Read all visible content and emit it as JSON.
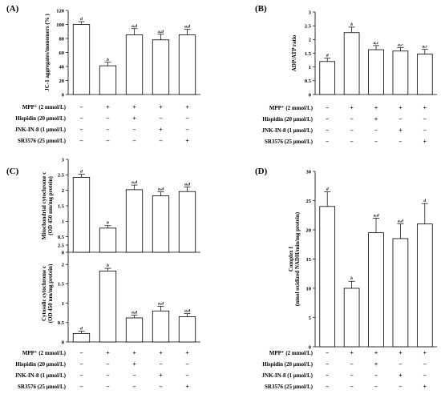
{
  "panels": [
    {
      "label": "(A)"
    },
    {
      "label": "(B)"
    },
    {
      "label": "(C)"
    },
    {
      "label": "(D)"
    }
  ],
  "conditions": {
    "labels": [
      "MPP⁺ (2 mmol/L)",
      "Hispidin (20 μmol/L)",
      "JNK-IN-8 (1 μmol/L)",
      "SR3576 (25 μmol/L)"
    ],
    "signs": [
      [
        "−",
        "+",
        "+",
        "+",
        "+"
      ],
      [
        "−",
        "−",
        "+",
        "−",
        "−"
      ],
      [
        "−",
        "−",
        "−",
        "+",
        "−"
      ],
      [
        "−",
        "−",
        "−",
        "−",
        "+"
      ]
    ]
  },
  "chart_data": [
    {
      "id": "A",
      "type": "bar",
      "ylabel": "JC-1 aggregates/monomers (% )",
      "ylim": [
        0,
        120
      ],
      "yticks": [
        0,
        20,
        40,
        60,
        80,
        100,
        120
      ],
      "values": [
        100,
        41,
        85,
        78,
        85
      ],
      "errors": [
        4,
        5,
        9,
        8,
        8
      ],
      "annotations": [
        "d",
        "b",
        "a,d",
        "a,d",
        "a,d"
      ]
    },
    {
      "id": "B",
      "type": "bar",
      "ylabel": "ADP/ATP ratio",
      "ylim": [
        0,
        3
      ],
      "yticks": [
        0,
        0.5,
        1,
        1.5,
        2,
        2.5,
        3
      ],
      "values": [
        1.2,
        2.25,
        1.63,
        1.58,
        1.47
      ],
      "errors": [
        0.12,
        0.2,
        0.15,
        0.12,
        0.17
      ],
      "annotations": [
        "d",
        "b",
        "a,c",
        "a,c",
        "a,c"
      ]
    },
    {
      "id": "C-top",
      "type": "bar",
      "ylabel": "Mitochondrial cytochrome c (OD 450 nm/mg protein)",
      "ylim": [
        0,
        3
      ],
      "yticks": [
        0,
        0.5,
        1,
        1.5,
        2,
        2.5,
        3
      ],
      "values": [
        2.42,
        0.78,
        2.02,
        1.82,
        1.96
      ],
      "errors": [
        0.1,
        0.08,
        0.15,
        0.13,
        0.15
      ],
      "annotations": [
        "d",
        "b",
        "a,d",
        "a,d",
        "a,d"
      ]
    },
    {
      "id": "C-bottom",
      "type": "bar",
      "ylabel": "Cytosolic cytochrome c (OD 450 nm/mg protein)",
      "ylim": [
        0,
        2.5
      ],
      "yticks": [
        0,
        0.5,
        1,
        1.5,
        2,
        2.5
      ],
      "values": [
        0.22,
        1.83,
        0.62,
        0.8,
        0.65
      ],
      "errors": [
        0.06,
        0.07,
        0.07,
        0.12,
        0.08
      ],
      "annotations": [
        "d",
        "b",
        "a,d",
        "a,d",
        "a,d"
      ]
    },
    {
      "id": "D",
      "type": "bar",
      "ylabel": "Complex I (nmol oxidized NADH/min/mg protein)",
      "ylim": [
        0,
        30
      ],
      "yticks": [
        0,
        5,
        10,
        15,
        20,
        25,
        30
      ],
      "values": [
        24,
        10,
        19.5,
        18.5,
        21
      ],
      "errors": [
        2.5,
        1.2,
        2.5,
        2.5,
        3.5
      ],
      "annotations": [
        "d",
        "b",
        "a,d",
        "a,d",
        "d"
      ]
    }
  ]
}
